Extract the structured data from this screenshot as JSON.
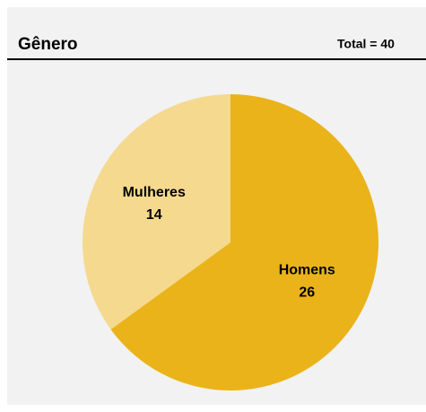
{
  "chart_data": {
    "type": "pie",
    "title": "Gênero",
    "annotation": "Total = 40",
    "categories": [
      "Homens",
      "Mulheres"
    ],
    "values": [
      26,
      14
    ],
    "colors": [
      "#eab31a",
      "#f5d98e"
    ]
  }
}
